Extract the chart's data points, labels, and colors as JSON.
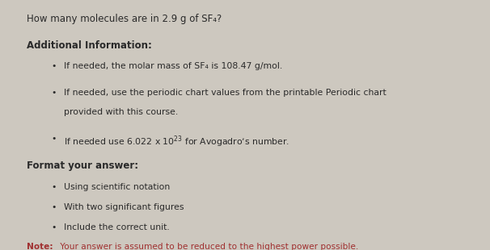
{
  "title": "How many molecules are in 2.9 g of SF₄?",
  "section1_header": "Additional Information:",
  "bullet1": "If needed, the molar mass of SF₄ is 108.47 g/mol.",
  "bullet2_line1": "If needed, use the periodic chart values from the printable Periodic chart",
  "bullet2_line2": "provided with this course.",
  "bullet3": "If needed use 6.022 x 10$^{23}$ for Avogadro’s number.",
  "section2_header": "Format your answer:",
  "bullet4": "Using scientific notation",
  "bullet5": "With two significant figures",
  "bullet6": "Include the correct unit.",
  "note_bold": "Note:",
  "note_text": " Your answer is assumed to be reduced to the highest power possible.",
  "bg_color": "#cdc8bf",
  "text_color": "#2a2a2a",
  "note_color": "#a03030",
  "title_fontsize": 8.5,
  "header_fontsize": 8.5,
  "bullet_fontsize": 7.8,
  "note_fontsize": 7.6
}
